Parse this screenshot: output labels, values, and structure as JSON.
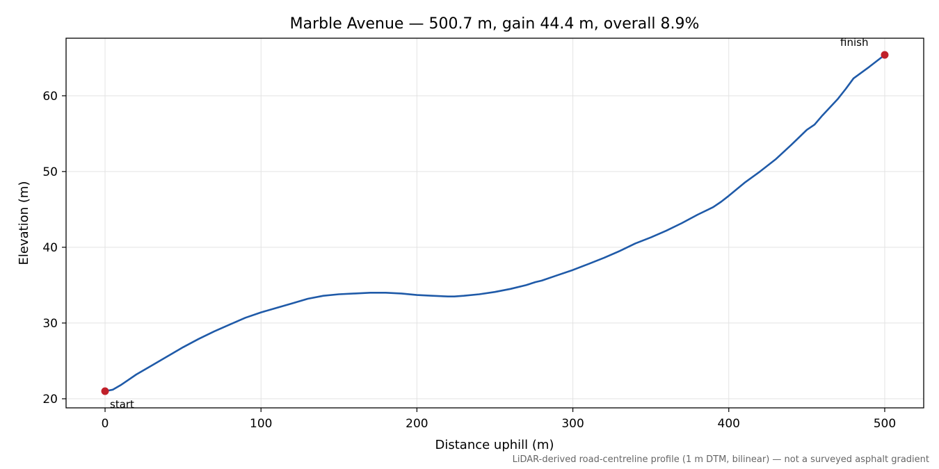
{
  "chart_data": {
    "type": "line",
    "title": "Marble Avenue — 500.7 m, gain 44.4 m, overall 8.9%",
    "xlabel": "Distance uphill (m)",
    "ylabel": "Elevation (m)",
    "xlim": [
      -25,
      525
    ],
    "ylim": [
      18.8,
      67.6
    ],
    "xticks": [
      0,
      100,
      200,
      300,
      400,
      500
    ],
    "yticks": [
      20,
      30,
      40,
      50,
      60
    ],
    "grid": true,
    "line_color": "#1f5aa8",
    "marker_color": "#c0202a",
    "series": [
      {
        "x": [
          0,
          5,
          10,
          15,
          20,
          30,
          40,
          50,
          60,
          70,
          80,
          90,
          100,
          110,
          120,
          130,
          140,
          150,
          160,
          170,
          180,
          190,
          200,
          210,
          220,
          224,
          230,
          240,
          250,
          260,
          270,
          276,
          280,
          290,
          300,
          310,
          320,
          330,
          340,
          350,
          360,
          370,
          380,
          390,
          395,
          400,
          410,
          420,
          430,
          440,
          450,
          455,
          460,
          470,
          475,
          480,
          490,
          500
        ],
        "y": [
          21.0,
          21.2,
          21.8,
          22.5,
          23.2,
          24.4,
          25.6,
          26.8,
          27.9,
          28.9,
          29.8,
          30.7,
          31.4,
          32.0,
          32.6,
          33.2,
          33.6,
          33.8,
          33.9,
          34.0,
          34.0,
          33.9,
          33.7,
          33.6,
          33.5,
          33.5,
          33.6,
          33.8,
          34.1,
          34.5,
          35.0,
          35.4,
          35.6,
          36.3,
          37.0,
          37.8,
          38.6,
          39.5,
          40.5,
          41.3,
          42.2,
          43.2,
          44.3,
          45.3,
          46.0,
          46.8,
          48.5,
          50.0,
          51.6,
          53.5,
          55.5,
          56.2,
          57.4,
          59.6,
          60.9,
          62.3,
          63.8,
          65.4
        ]
      }
    ],
    "annotations": [
      {
        "text": "start",
        "x": 0,
        "y": 21.0
      },
      {
        "text": "finish",
        "x": 500,
        "y": 65.4
      }
    ],
    "footnote": "LiDAR-derived road-centreline profile (1 m DTM, bilinear) — not a surveyed asphalt gradient"
  }
}
